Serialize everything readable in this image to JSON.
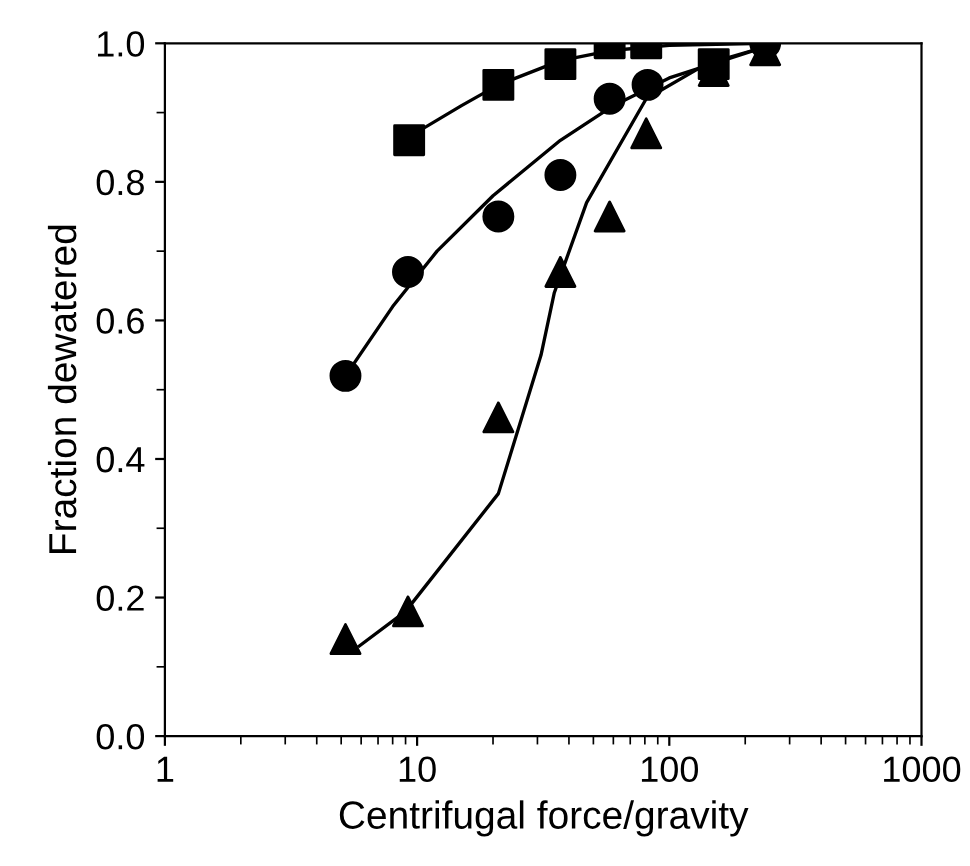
{
  "chart_data": {
    "type": "scatter",
    "xlabel": "Centrifugal force/gravity",
    "ylabel": "Fraction dewatered",
    "log": "x",
    "xlim": [
      1,
      1000
    ],
    "xticks": [
      1,
      10,
      100,
      1000
    ],
    "ylim": [
      0,
      1.0
    ],
    "yticks": [
      {
        "value": 0,
        "label": "0.0"
      },
      {
        "value": 0.2,
        "label": "0.2"
      },
      {
        "value": 0.4,
        "label": "0.4"
      },
      {
        "value": 0.6,
        "label": "0.6"
      },
      {
        "value": 0.8,
        "label": "0.8"
      },
      {
        "value": 1.0,
        "label": "1.0"
      }
    ],
    "grid": false,
    "legend": false,
    "series": [
      {
        "marker": "square",
        "color": "#000000",
        "x": [
          9.3,
          21,
          37,
          58,
          81,
          150
        ],
        "values": [
          0.86,
          0.94,
          0.97,
          1.0,
          1.0,
          0.97
        ]
      },
      {
        "marker": "circle",
        "color": "#000000",
        "x": [
          5.2,
          9.2,
          21,
          37,
          58,
          82,
          240
        ],
        "values": [
          0.52,
          0.67,
          0.75,
          0.81,
          0.92,
          0.94,
          1.0
        ]
      },
      {
        "marker": "triangle",
        "color": "#000000",
        "x": [
          5.2,
          9.2,
          21,
          37,
          58,
          81,
          150,
          240
        ],
        "values": [
          0.14,
          0.18,
          0.46,
          0.67,
          0.75,
          0.87,
          0.96,
          0.99
        ]
      },
      {
        "type": "line",
        "marker": "none",
        "line_style": "solid",
        "color": "#000000",
        "x": [
          9.3,
          15,
          21,
          37,
          60,
          100,
          240
        ],
        "values": [
          0.865,
          0.91,
          0.94,
          0.975,
          0.99,
          0.997,
          1.0
        ]
      },
      {
        "type": "line",
        "marker": "none",
        "line_style": "solid",
        "color": "#000000",
        "x": [
          5.2,
          8,
          12,
          20,
          37,
          60,
          100,
          240
        ],
        "values": [
          0.52,
          0.62,
          0.7,
          0.78,
          0.86,
          0.91,
          0.95,
          0.995
        ]
      },
      {
        "type": "line",
        "marker": "none",
        "line_style": "solid",
        "color": "#000000",
        "x": [
          5.9,
          9.0,
          21,
          31,
          35,
          47,
          81,
          140,
          240
        ],
        "values": [
          0.13,
          0.18,
          0.35,
          0.55,
          0.64,
          0.77,
          0.92,
          0.97,
          0.995
        ]
      }
    ]
  }
}
